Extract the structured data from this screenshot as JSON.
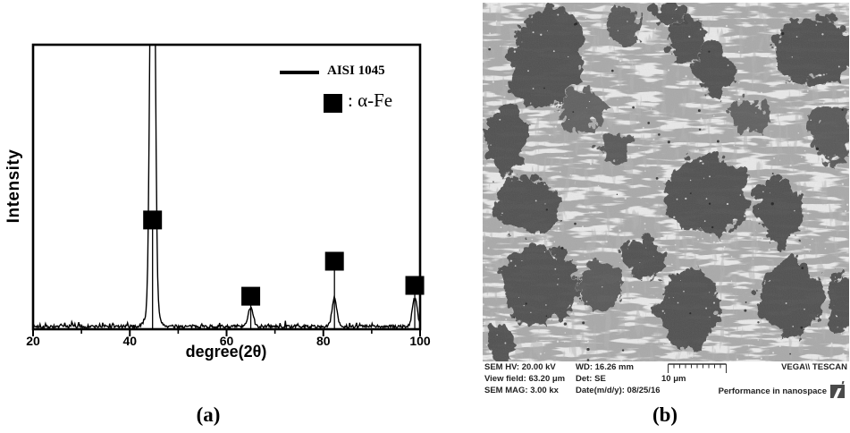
{
  "figure": {
    "caption_a": "(a)",
    "caption_b": "(b)"
  },
  "chart_data": {
    "type": "line",
    "subtype": "xrd-pattern",
    "title": "",
    "xlabel": "degree(2θ)",
    "ylabel": "Intensity",
    "xlim": [
      20,
      100
    ],
    "xticks": [
      "20",
      "40",
      "60",
      "80",
      "100"
    ],
    "minor_xticks": [
      30,
      50,
      70,
      90
    ],
    "yticks": [],
    "grid": false,
    "line_color": "#000000",
    "background": "#ffffff",
    "legend": {
      "position": "top-right",
      "entries": [
        {
          "swatch": "line",
          "label": "AISI 1045"
        },
        {
          "swatch": "filled-square",
          "label": ": α-Fe"
        }
      ]
    },
    "series": [
      {
        "name": "AISI 1045",
        "peaks": [
          {
            "two_theta": 44.7,
            "rel_intensity": 100,
            "clipped_at_top": true,
            "phase": "α-Fe"
          },
          {
            "two_theta": 65.0,
            "rel_intensity": 7,
            "phase": "α-Fe"
          },
          {
            "two_theta": 82.3,
            "rel_intensity": 10,
            "phase": "α-Fe"
          },
          {
            "two_theta": 98.9,
            "rel_intensity": 10,
            "phase": "α-Fe"
          }
        ],
        "noise_rel_intensity": 1.5
      }
    ],
    "phase_markers": {
      "symbol": "filled-square",
      "phase": "α-Fe",
      "positions": [
        {
          "two_theta": 44.7,
          "y_frac": 0.616
        },
        {
          "two_theta": 65.0,
          "y_frac": 0.884
        },
        {
          "two_theta": 82.3,
          "y_frac": 0.761
        },
        {
          "two_theta": 98.9,
          "y_frac": 0.846
        }
      ]
    }
  },
  "sem": {
    "metadata_bar": {
      "sem_hv": "SEM HV: 20.00 kV",
      "wd": "WD: 16.26 mm",
      "view_field": "View field: 63.20 μm",
      "det": "Det: SE",
      "sem_mag": "SEM MAG: 3.00 kx",
      "date": "Date(m/d/y): 08/25/16",
      "scale_label": "10 μm",
      "brand": "VEGA\\\\ TESCAN",
      "tagline": "Performance in nanospace"
    }
  }
}
